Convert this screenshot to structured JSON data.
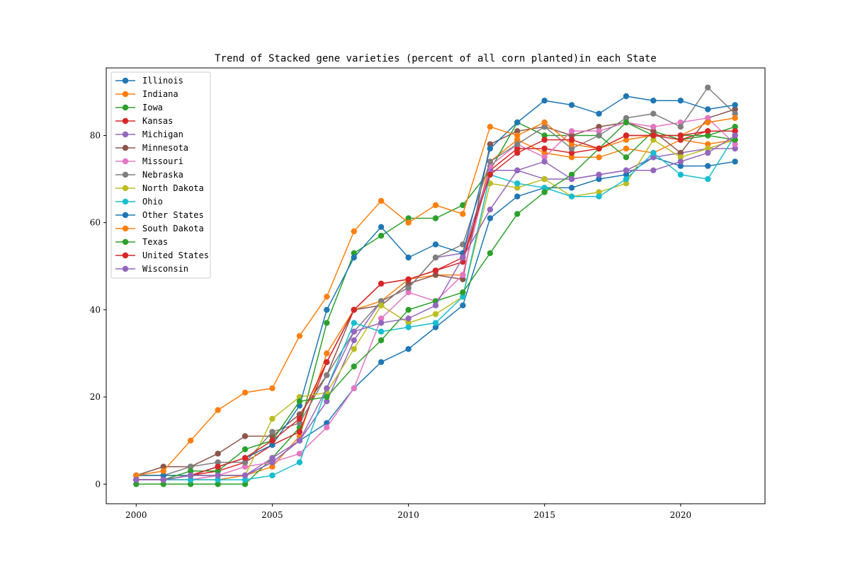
{
  "chart_data": {
    "type": "line",
    "title": "Trend of Stacked gene varieties (percent of all corn planted)in each State",
    "xlabel": "",
    "ylabel": "",
    "xlim": [
      1998.9,
      2023.1
    ],
    "ylim": [
      -4.5,
      95.5
    ],
    "xticks": [
      2000,
      2005,
      2010,
      2015,
      2020
    ],
    "yticks": [
      0,
      20,
      40,
      60,
      80
    ],
    "grid": false,
    "legend": "upper-left",
    "x": [
      2000,
      2001,
      2002,
      2003,
      2004,
      2005,
      2006,
      2007,
      2008,
      2009,
      2010,
      2011,
      2012,
      2013,
      2014,
      2015,
      2016,
      2017,
      2018,
      2019,
      2020,
      2021,
      2022
    ],
    "series": [
      {
        "name": "Illinois",
        "color": "#1f77b4",
        "values": [
          1,
          1,
          2,
          2,
          2,
          5,
          10,
          14,
          22,
          28,
          31,
          36,
          41,
          61,
          66,
          68,
          68,
          70,
          71,
          75,
          73,
          73,
          74
        ]
      },
      {
        "name": "Indiana",
        "color": "#ff7f0e",
        "values": [
          1,
          1,
          1,
          1,
          2,
          4,
          11,
          30,
          40,
          42,
          47,
          48,
          48,
          74,
          79,
          76,
          75,
          75,
          77,
          76,
          79,
          78,
          79
        ]
      },
      {
        "name": "Iowa",
        "color": "#2ca02c",
        "values": [
          0,
          0,
          0,
          0,
          0,
          6,
          13,
          37,
          53,
          57,
          61,
          61,
          64,
          72,
          83,
          80,
          80,
          80,
          75,
          81,
          79,
          80,
          82
        ]
      },
      {
        "name": "Kansas",
        "color": "#d62728",
        "values": [
          1,
          1,
          2,
          3,
          5,
          9,
          12,
          28,
          40,
          46,
          47,
          49,
          51,
          72,
          77,
          77,
          76,
          77,
          80,
          80,
          79,
          81,
          81
        ]
      },
      {
        "name": "Michigan",
        "color": "#9467bd",
        "values": [
          1,
          1,
          1,
          2,
          2,
          6,
          10,
          19,
          33,
          42,
          45,
          52,
          53,
          72,
          72,
          70,
          70,
          71,
          72,
          75,
          76,
          77,
          77
        ]
      },
      {
        "name": "Minnesota",
        "color": "#8c564b",
        "values": [
          2,
          4,
          4,
          7,
          11,
          11,
          16,
          25,
          40,
          41,
          46,
          48,
          47,
          78,
          81,
          82,
          80,
          82,
          83,
          81,
          76,
          84,
          86
        ]
      },
      {
        "name": "Missouri",
        "color": "#e377c2",
        "values": [
          1,
          1,
          1,
          2,
          4,
          5,
          7,
          13,
          22,
          38,
          44,
          42,
          48,
          73,
          78,
          75,
          81,
          81,
          83,
          82,
          83,
          84,
          78
        ]
      },
      {
        "name": "Nebraska",
        "color": "#7f7f7f",
        "values": [
          2,
          2,
          4,
          5,
          5,
          12,
          14,
          25,
          35,
          42,
          45,
          52,
          55,
          74,
          78,
          82,
          77,
          80,
          84,
          85,
          82,
          91,
          85
        ]
      },
      {
        "name": "North Dakota",
        "color": "#bcbd22",
        "values": [
          2,
          2,
          2,
          2,
          2,
          15,
          20,
          21,
          31,
          41,
          37,
          39,
          43,
          69,
          68,
          70,
          66,
          67,
          69,
          79,
          75,
          77,
          79
        ]
      },
      {
        "name": "Ohio",
        "color": "#17becf",
        "values": [
          1,
          1,
          1,
          1,
          1,
          2,
          5,
          22,
          37,
          35,
          36,
          37,
          43,
          71,
          69,
          68,
          66,
          66,
          70,
          76,
          71,
          70,
          80
        ]
      },
      {
        "name": "Other States",
        "color": "#1f77b4",
        "values": [
          2,
          2,
          2,
          4,
          6,
          9,
          18,
          40,
          52,
          59,
          52,
          55,
          53,
          77,
          83,
          88,
          87,
          85,
          89,
          88,
          88,
          86,
          87
        ]
      },
      {
        "name": "South Dakota",
        "color": "#ff7f0e",
        "values": [
          2,
          3,
          10,
          17,
          21,
          22,
          34,
          43,
          58,
          65,
          60,
          64,
          62,
          82,
          80,
          83,
          78,
          77,
          79,
          80,
          80,
          83,
          84
        ]
      },
      {
        "name": "Texas",
        "color": "#2ca02c",
        "values": [
          1,
          1,
          3,
          3,
          8,
          10,
          19,
          20,
          27,
          33,
          40,
          42,
          44,
          53,
          62,
          67,
          71,
          77,
          83,
          80,
          80,
          80,
          79
        ]
      },
      {
        "name": "United States",
        "color": "#d62728",
        "values": [
          1,
          1,
          2,
          4,
          6,
          10,
          15,
          28,
          40,
          46,
          47,
          49,
          52,
          71,
          76,
          79,
          79,
          77,
          80,
          80,
          80,
          81,
          81
        ]
      },
      {
        "name": "Wisconsin",
        "color": "#9467bd",
        "values": [
          1,
          1,
          2,
          2,
          2,
          5,
          10,
          22,
          35,
          37,
          38,
          41,
          52,
          63,
          72,
          74,
          70,
          71,
          72,
          72,
          74,
          76,
          80
        ]
      }
    ]
  }
}
